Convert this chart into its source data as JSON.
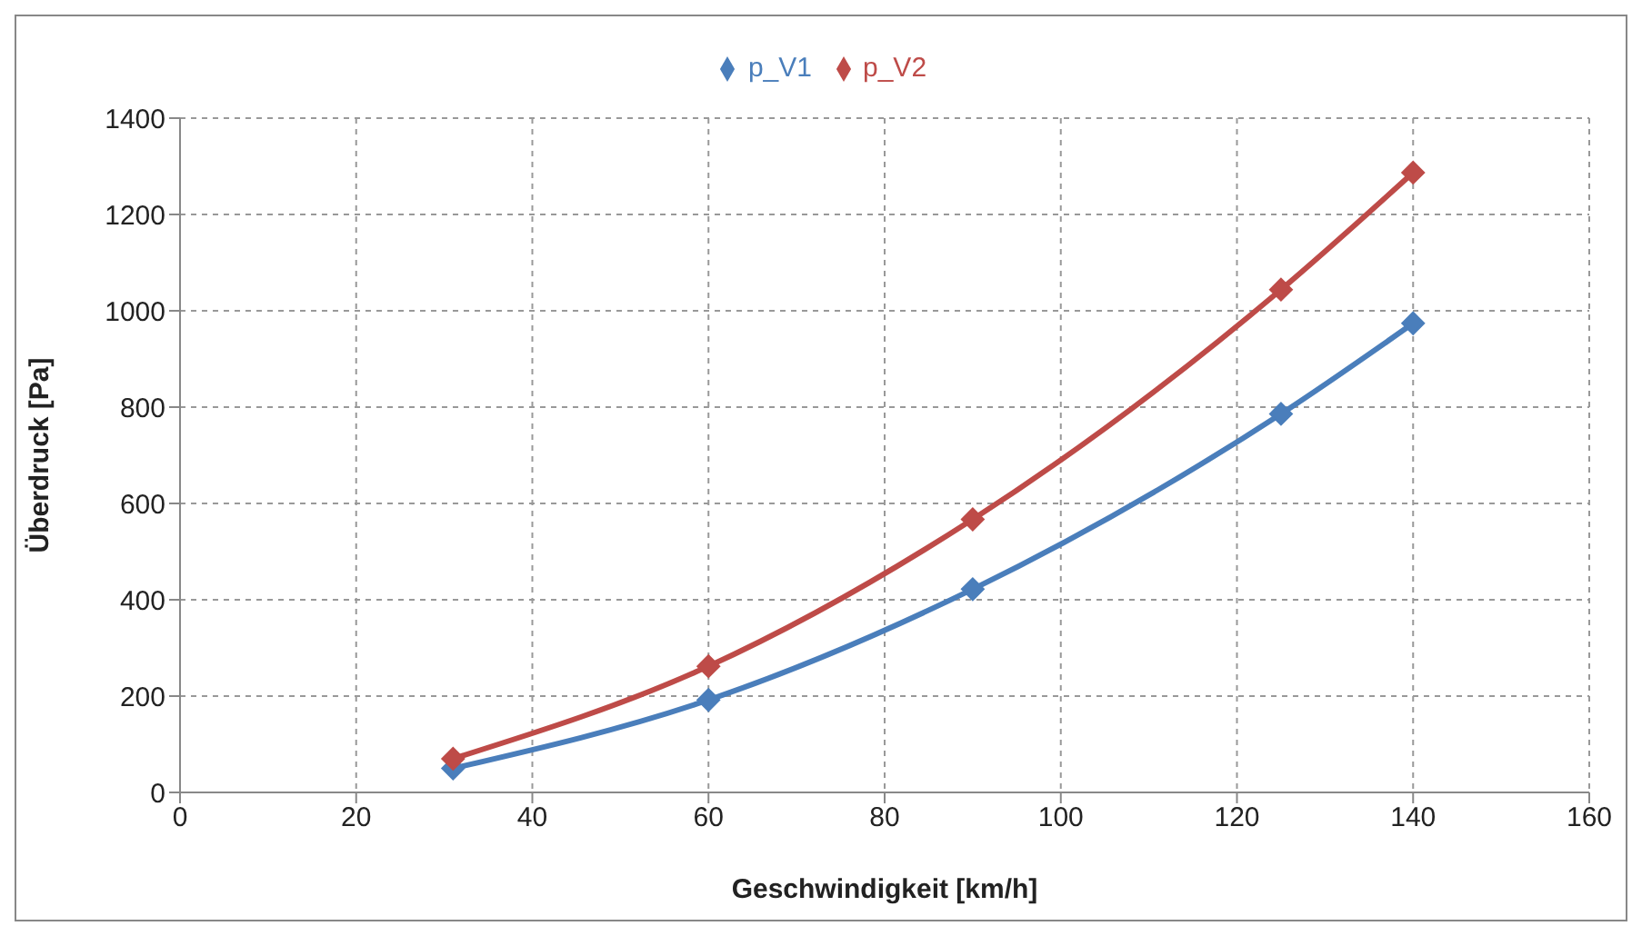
{
  "chart_data": {
    "type": "line",
    "xlabel": "Geschwindigkeit [km/h]",
    "ylabel": "Überdruck [Pa]",
    "x": [
      31,
      60,
      90,
      125,
      140
    ],
    "series": [
      {
        "name": "p_V1",
        "color": "#4a7ebb",
        "values": [
          50,
          192,
          422,
          786,
          974
        ]
      },
      {
        "name": "p_V2",
        "color": "#be4b48",
        "values": [
          70,
          262,
          567,
          1044,
          1287
        ]
      }
    ],
    "xlim": [
      0,
      160
    ],
    "xticks": [
      0,
      20,
      40,
      60,
      80,
      100,
      120,
      140,
      160
    ],
    "ylim": [
      0,
      1400
    ],
    "yticks": [
      0,
      200,
      400,
      600,
      800,
      1000,
      1200,
      1400
    ],
    "grid": true,
    "legend": "top",
    "marker": "diamond",
    "line_style": "solid"
  }
}
